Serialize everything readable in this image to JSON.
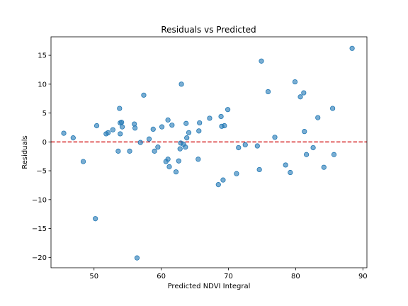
{
  "chart_data": {
    "type": "scatter",
    "title": "Residuals vs Predicted",
    "xlabel": "Predicted NDVI Integral",
    "ylabel": "Residuals",
    "xlim": [
      43.6,
      90.6
    ],
    "ylim": [
      -21.8,
      18.2
    ],
    "xticks": [
      50,
      60,
      70,
      80,
      90
    ],
    "yticks": [
      -20,
      -15,
      -10,
      -5,
      0,
      5,
      10,
      15
    ],
    "xtick_labels": [
      "50",
      "60",
      "70",
      "80",
      "90"
    ],
    "ytick_labels": [
      "−20",
      "−15",
      "−10",
      "−5",
      "0",
      "5",
      "10",
      "15"
    ],
    "reference_line": {
      "y": 0,
      "style": "dashed",
      "color": "#d62728"
    },
    "grid": false,
    "point_color": "#1f77b4",
    "points": [
      [
        45.5,
        1.5
      ],
      [
        46.9,
        0.7
      ],
      [
        48.4,
        -3.4
      ],
      [
        50.2,
        -13.3
      ],
      [
        50.4,
        2.8
      ],
      [
        51.8,
        1.4
      ],
      [
        52.1,
        1.6
      ],
      [
        52.8,
        2.1
      ],
      [
        53.6,
        -1.6
      ],
      [
        53.8,
        5.8
      ],
      [
        53.9,
        1.4
      ],
      [
        53.9,
        3.3
      ],
      [
        54.1,
        3.4
      ],
      [
        54.2,
        2.6
      ],
      [
        55.3,
        -1.6
      ],
      [
        56.0,
        3.1
      ],
      [
        56.1,
        2.4
      ],
      [
        56.4,
        -20.1
      ],
      [
        56.9,
        -0.1
      ],
      [
        57.4,
        8.1
      ],
      [
        58.2,
        0.5
      ],
      [
        58.8,
        2.2
      ],
      [
        59.0,
        -1.6
      ],
      [
        59.5,
        -0.9
      ],
      [
        60.1,
        2.6
      ],
      [
        60.7,
        -3.4
      ],
      [
        61.0,
        -3.0
      ],
      [
        61.0,
        3.8
      ],
      [
        61.2,
        -4.3
      ],
      [
        61.6,
        2.9
      ],
      [
        62.2,
        -5.2
      ],
      [
        62.6,
        -3.3
      ],
      [
        62.8,
        -1.2
      ],
      [
        62.9,
        -0.2
      ],
      [
        63.0,
        10.0
      ],
      [
        63.3,
        -0.4
      ],
      [
        63.6,
        -0.9
      ],
      [
        63.7,
        3.2
      ],
      [
        63.8,
        0.7
      ],
      [
        64.1,
        1.6
      ],
      [
        65.5,
        -3.0
      ],
      [
        65.6,
        1.9
      ],
      [
        65.7,
        3.3
      ],
      [
        67.2,
        4.1
      ],
      [
        68.5,
        -7.4
      ],
      [
        68.9,
        4.4
      ],
      [
        69.0,
        2.7
      ],
      [
        69.2,
        -6.6
      ],
      [
        69.4,
        2.8
      ],
      [
        69.9,
        5.6
      ],
      [
        71.2,
        -5.5
      ],
      [
        71.5,
        -1.0
      ],
      [
        72.5,
        -0.5
      ],
      [
        74.3,
        -0.7
      ],
      [
        74.6,
        -4.8
      ],
      [
        74.9,
        14.0
      ],
      [
        75.9,
        8.7
      ],
      [
        76.9,
        0.8
      ],
      [
        78.5,
        -4.0
      ],
      [
        79.2,
        -5.3
      ],
      [
        79.9,
        10.4
      ],
      [
        80.7,
        7.8
      ],
      [
        81.2,
        8.5
      ],
      [
        81.3,
        1.8
      ],
      [
        81.6,
        -2.2
      ],
      [
        82.6,
        -1.0
      ],
      [
        83.3,
        4.2
      ],
      [
        84.2,
        -4.4
      ],
      [
        85.5,
        5.8
      ],
      [
        85.7,
        -2.2
      ],
      [
        88.4,
        16.2
      ]
    ]
  }
}
